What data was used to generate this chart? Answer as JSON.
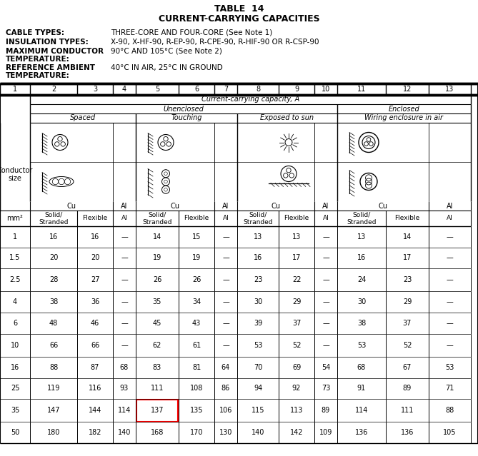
{
  "title1": "TABLE  14",
  "title2": "CURRENT-CARRYING CAPACITIES",
  "label1_key": "CABLE TYPES:",
  "label1_val": "THREE-CORE AND FOUR-CORE (See Note 1)",
  "label2_key": "INSULATION TYPES:",
  "label2_val": "X-90, X-HF-90, R-EP-90, R-CPE-90, R-HIF-90 OR R-CSP-90",
  "label3_key1": "MAXIMUM CONDUCTOR",
  "label3_key2": "TEMPERATURE:",
  "label3_val": "90°C AND 105°C (See Note 2)",
  "label4_key1": "REFERENCE AMBIENT",
  "label4_key2": "TEMPERATURE:",
  "label4_val": "40°C IN AIR, 25°C IN GROUND",
  "col_nums": [
    "1",
    "2",
    "3",
    "4",
    "5",
    "6",
    "7",
    "8",
    "9",
    "10",
    "11",
    "12",
    "13"
  ],
  "header_ccc": "Current-carrying capacity, A",
  "header_unenclosed": "Unenclosed",
  "header_enclosed": "Enclosed",
  "header_spaced": "Spaced",
  "header_touching": "Touching",
  "header_sun": "Exposed to sun",
  "header_wiring": "Wiring enclosure in air",
  "header_cu": "Cu",
  "header_al": "Al",
  "subheader_solid": "Solid/\nStranded",
  "subheader_flexible": "Flexible",
  "col_mm2": "mm²",
  "conductor_size_line1": "Conductor",
  "conductor_size_line2": "size",
  "rows": [
    {
      "size": "1",
      "c2": 16,
      "c3": 16,
      "c4": "—",
      "c5": 14,
      "c6": 15,
      "c7": "—",
      "c8": 13,
      "c9": 13,
      "c10": "—",
      "c11": 13,
      "c12": 14,
      "c13": "—",
      "highlight": false
    },
    {
      "size": "1.5",
      "c2": 20,
      "c3": 20,
      "c4": "—",
      "c5": 19,
      "c6": 19,
      "c7": "—",
      "c8": 16,
      "c9": 17,
      "c10": "—",
      "c11": 16,
      "c12": 17,
      "c13": "—",
      "highlight": false
    },
    {
      "size": "2.5",
      "c2": 28,
      "c3": 27,
      "c4": "—",
      "c5": 26,
      "c6": 26,
      "c7": "—",
      "c8": 23,
      "c9": 22,
      "c10": "—",
      "c11": 24,
      "c12": 23,
      "c13": "—",
      "highlight": false
    },
    {
      "size": "4",
      "c2": 38,
      "c3": 36,
      "c4": "—",
      "c5": 35,
      "c6": 34,
      "c7": "—",
      "c8": 30,
      "c9": 29,
      "c10": "—",
      "c11": 30,
      "c12": 29,
      "c13": "—",
      "highlight": false
    },
    {
      "size": "6",
      "c2": 48,
      "c3": 46,
      "c4": "—",
      "c5": 45,
      "c6": 43,
      "c7": "—",
      "c8": 39,
      "c9": 37,
      "c10": "—",
      "c11": 38,
      "c12": 37,
      "c13": "—",
      "highlight": false
    },
    {
      "size": "10",
      "c2": 66,
      "c3": 66,
      "c4": "—",
      "c5": 62,
      "c6": 61,
      "c7": "—",
      "c8": 53,
      "c9": 52,
      "c10": "—",
      "c11": 53,
      "c12": 52,
      "c13": "—",
      "highlight": false
    },
    {
      "size": "16",
      "c2": 88,
      "c3": 87,
      "c4": 68,
      "c5": 83,
      "c6": 81,
      "c7": 64,
      "c8": 70,
      "c9": 69,
      "c10": 54,
      "c11": 68,
      "c12": 67,
      "c13": 53,
      "highlight": false
    },
    {
      "size": "25",
      "c2": 119,
      "c3": 116,
      "c4": 93,
      "c5": 111,
      "c6": 108,
      "c7": 86,
      "c8": 94,
      "c9": 92,
      "c10": 73,
      "c11": 91,
      "c12": 89,
      "c13": 71,
      "highlight": false
    },
    {
      "size": "35",
      "c2": 147,
      "c3": 144,
      "c4": 114,
      "c5": 137,
      "c6": 135,
      "c7": 106,
      "c8": 115,
      "c9": 113,
      "c10": 89,
      "c11": 114,
      "c12": 111,
      "c13": 88,
      "highlight": true
    },
    {
      "size": "50",
      "c2": 180,
      "c3": 182,
      "c4": 140,
      "c5": 168,
      "c6": 170,
      "c7": 130,
      "c8": 140,
      "c9": 142,
      "c10": 109,
      "c11": 136,
      "c12": 136,
      "c13": 105,
      "highlight": false
    }
  ],
  "highlight_col_idx": 4,
  "bg_color": "#ffffff",
  "text_color": "#000000",
  "highlight_color": "#ff0000",
  "cols": [
    0,
    42,
    108,
    158,
    190,
    250,
    300,
    332,
    390,
    440,
    472,
    540,
    600,
    659
  ]
}
